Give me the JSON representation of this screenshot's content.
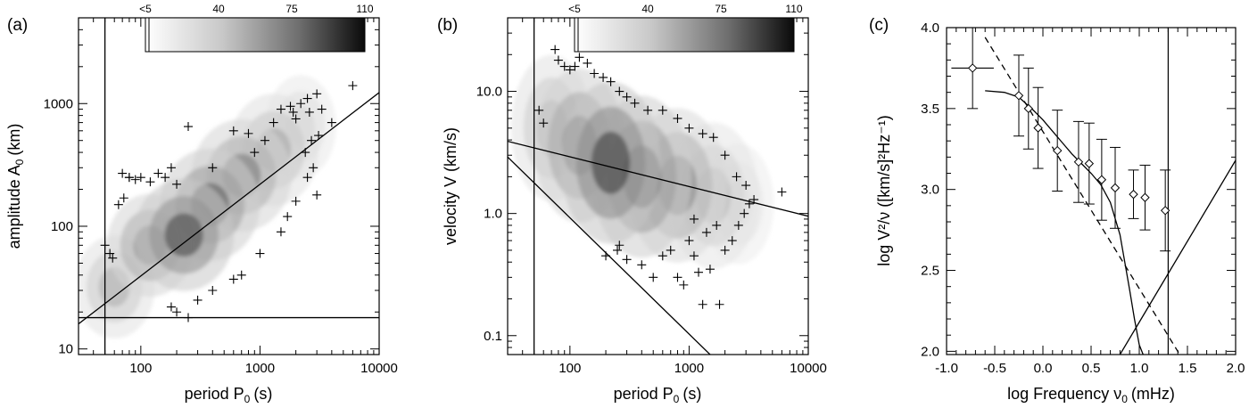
{
  "chart_data": [
    {
      "type": "scatter",
      "panel_label": "(a)",
      "xlabel": "period P",
      "xlabel_sub": "0",
      "xlabel_unit": "(s)",
      "ylabel": "amplitude A",
      "ylabel_sub": "0",
      "ylabel_unit": "(km)",
      "xscale": "log",
      "yscale": "log",
      "xlim": [
        30,
        10000
      ],
      "ylim": [
        9,
        5000
      ],
      "xticks": [
        100,
        1000,
        10000
      ],
      "xtick_labels": [
        "100",
        "1000",
        "10000"
      ],
      "yticks": [
        10,
        100,
        1000
      ],
      "ytick_labels": [
        "10",
        "100",
        "1000"
      ],
      "colorbar": {
        "tick_labels": [
          "<5",
          "40",
          "75",
          "110"
        ],
        "range": [
          0,
          110
        ]
      },
      "density_blobs": [
        {
          "cx": 60,
          "cy": 32,
          "sx": 1.35,
          "sy": 1.45,
          "level": 35
        },
        {
          "cx": 120,
          "cy": 70,
          "sx": 1.38,
          "sy": 1.45,
          "level": 60
        },
        {
          "cx": 230,
          "cy": 85,
          "sx": 1.45,
          "sy": 1.5,
          "level": 85
        },
        {
          "cx": 380,
          "cy": 150,
          "sx": 1.45,
          "sy": 1.5,
          "level": 75
        },
        {
          "cx": 700,
          "cy": 260,
          "sx": 1.45,
          "sy": 1.5,
          "level": 60
        },
        {
          "cx": 1300,
          "cy": 420,
          "sx": 1.4,
          "sy": 1.5,
          "level": 40
        },
        {
          "cx": 2200,
          "cy": 650,
          "sx": 1.3,
          "sy": 1.45,
          "level": 20
        }
      ],
      "points": [
        [
          70,
          270
        ],
        [
          80,
          250
        ],
        [
          90,
          240
        ],
        [
          100,
          250
        ],
        [
          120,
          230
        ],
        [
          140,
          270
        ],
        [
          160,
          250
        ],
        [
          180,
          300
        ],
        [
          200,
          220
        ],
        [
          250,
          650
        ],
        [
          400,
          300
        ],
        [
          600,
          600
        ],
        [
          800,
          570
        ],
        [
          900,
          400
        ],
        [
          1100,
          500
        ],
        [
          1300,
          700
        ],
        [
          1500,
          900
        ],
        [
          1800,
          950
        ],
        [
          2000,
          750
        ],
        [
          2200,
          1000
        ],
        [
          2500,
          1100
        ],
        [
          2600,
          850
        ],
        [
          3000,
          1200
        ],
        [
          3300,
          900
        ],
        [
          4000,
          700
        ],
        [
          6000,
          1400
        ],
        [
          3000,
          180
        ],
        [
          2800,
          300
        ],
        [
          2500,
          250
        ],
        [
          2000,
          160
        ],
        [
          1700,
          120
        ],
        [
          1500,
          90
        ],
        [
          1000,
          60
        ],
        [
          700,
          40
        ],
        [
          600,
          37
        ],
        [
          400,
          30
        ],
        [
          300,
          25
        ],
        [
          200,
          20
        ],
        [
          180,
          22
        ],
        [
          250,
          18
        ],
        [
          50,
          70
        ],
        [
          55,
          60
        ],
        [
          58,
          55
        ],
        [
          65,
          150
        ],
        [
          72,
          170
        ],
        [
          80,
          250
        ],
        [
          2400,
          400
        ],
        [
          2700,
          500
        ],
        [
          3100,
          550
        ],
        [
          1900,
          850
        ]
      ],
      "lines": [
        {
          "name": "fit",
          "points": [
            [
              30,
              16
            ],
            [
              10000,
              1230
            ]
          ]
        },
        {
          "name": "lower-limit",
          "points": [
            [
              30,
              18
            ],
            [
              10000,
              18
            ]
          ]
        },
        {
          "name": "period-cutoff",
          "points": [
            [
              50,
              9
            ],
            [
              50,
              5000
            ]
          ]
        }
      ]
    },
    {
      "type": "scatter",
      "panel_label": "(b)",
      "xlabel": "period P",
      "xlabel_sub": "0",
      "xlabel_unit": "(s)",
      "ylabel": "velocity V (km/s)",
      "xscale": "log",
      "yscale": "log",
      "xlim": [
        30,
        10000
      ],
      "ylim": [
        0.07,
        40
      ],
      "xticks": [
        100,
        1000,
        10000
      ],
      "xtick_labels": [
        "100",
        "1000",
        "10000"
      ],
      "yticks": [
        0.1,
        1,
        10
      ],
      "ytick_labels": [
        "0.1",
        "1.0",
        "10.0"
      ],
      "colorbar": {
        "tick_labels": [
          "<5",
          "40",
          "75",
          "110"
        ],
        "range": [
          0,
          110
        ]
      },
      "density_blobs": [
        {
          "cx": 70,
          "cy": 5,
          "sx": 1.35,
          "sy": 1.7,
          "level": 35
        },
        {
          "cx": 120,
          "cy": 3.6,
          "sx": 1.4,
          "sy": 1.75,
          "level": 65
        },
        {
          "cx": 220,
          "cy": 2.6,
          "sx": 1.45,
          "sy": 1.8,
          "level": 90
        },
        {
          "cx": 400,
          "cy": 2.0,
          "sx": 1.45,
          "sy": 1.8,
          "level": 75
        },
        {
          "cx": 800,
          "cy": 1.7,
          "sx": 1.45,
          "sy": 1.75,
          "level": 55
        },
        {
          "cx": 1600,
          "cy": 1.4,
          "sx": 1.4,
          "sy": 1.7,
          "level": 30
        },
        {
          "cx": 2600,
          "cy": 1.2,
          "sx": 1.3,
          "sy": 1.55,
          "level": 15
        }
      ],
      "points": [
        [
          75,
          22
        ],
        [
          80,
          18
        ],
        [
          90,
          16
        ],
        [
          100,
          15
        ],
        [
          110,
          16
        ],
        [
          120,
          19
        ],
        [
          140,
          17
        ],
        [
          160,
          14
        ],
        [
          190,
          13
        ],
        [
          220,
          12
        ],
        [
          260,
          10
        ],
        [
          300,
          9
        ],
        [
          350,
          8
        ],
        [
          450,
          7
        ],
        [
          600,
          7
        ],
        [
          800,
          6
        ],
        [
          1000,
          5
        ],
        [
          1300,
          4.5
        ],
        [
          1600,
          4.2
        ],
        [
          2000,
          3
        ],
        [
          2500,
          2
        ],
        [
          3000,
          1.7
        ],
        [
          3500,
          1.3
        ],
        [
          6000,
          1.5
        ],
        [
          55,
          7
        ],
        [
          60,
          5.5
        ],
        [
          600,
          0.45
        ],
        [
          700,
          0.5
        ],
        [
          800,
          0.3
        ],
        [
          900,
          0.26
        ],
        [
          1000,
          0.6
        ],
        [
          1100,
          0.45
        ],
        [
          1200,
          0.33
        ],
        [
          1300,
          0.18
        ],
        [
          1500,
          0.35
        ],
        [
          1800,
          0.18
        ],
        [
          2000,
          0.5
        ],
        [
          1700,
          0.8
        ],
        [
          1400,
          0.7
        ],
        [
          1100,
          0.9
        ],
        [
          500,
          0.3
        ],
        [
          400,
          0.38
        ],
        [
          300,
          0.42
        ],
        [
          250,
          0.5
        ],
        [
          200,
          0.45
        ],
        [
          260,
          0.55
        ],
        [
          2300,
          0.6
        ],
        [
          2600,
          0.8
        ],
        [
          2900,
          1.0
        ],
        [
          3200,
          1.2
        ]
      ],
      "lines": [
        {
          "name": "fit",
          "points": [
            [
              30,
              3.9
            ],
            [
              10000,
              0.95
            ]
          ]
        },
        {
          "name": "lower-limit",
          "points": [
            [
              30,
              2.9
            ],
            [
              1500,
              0.07
            ]
          ]
        },
        {
          "name": "period-cutoff",
          "points": [
            [
              50,
              0.07
            ],
            [
              50,
              40
            ]
          ]
        }
      ]
    },
    {
      "type": "line",
      "panel_label": "(c)",
      "xlabel": "log Frequency ν",
      "xlabel_sub": "0",
      "xlabel_unit": "(mHz)",
      "ylabel": "log V²/ν  ([km/s]²Hz⁻¹)",
      "xlim": [
        -1.0,
        2.0
      ],
      "ylim": [
        1.98,
        4.0
      ],
      "xticks": [
        -1.0,
        -0.5,
        0.0,
        0.5,
        1.0,
        1.5,
        2.0
      ],
      "xtick_labels": [
        "-1.0",
        "-0.5",
        "0.0",
        "0.5",
        "1.0",
        "1.5",
        "2.0"
      ],
      "yticks": [
        2.0,
        2.5,
        3.0,
        3.5,
        4.0
      ],
      "ytick_labels": [
        "2.0",
        "2.5",
        "3.0",
        "3.5",
        "4.0"
      ],
      "series": [
        {
          "name": "measured",
          "marker": "diamond",
          "x": [
            -0.73,
            -0.25,
            -0.15,
            -0.05,
            0.15,
            0.37,
            0.48,
            0.61,
            0.75,
            0.94,
            1.06,
            1.27
          ],
          "y": [
            3.75,
            3.58,
            3.5,
            3.38,
            3.24,
            3.17,
            3.16,
            3.06,
            3.01,
            2.97,
            2.95,
            2.87
          ],
          "yerr": [
            0.25,
            0.25,
            0.25,
            0.25,
            0.25,
            0.25,
            0.25,
            0.25,
            0.25,
            0.15,
            0.2,
            0.25
          ],
          "xerr": [
            0.22,
            0,
            0,
            0,
            0,
            0,
            0,
            0,
            0,
            0,
            0,
            0
          ]
        },
        {
          "name": "model",
          "style": "solid",
          "x": [
            -0.6,
            -0.4,
            -0.25,
            -0.1,
            0.0,
            0.1,
            0.2,
            0.3,
            0.4,
            0.5,
            0.6,
            0.7,
            0.8,
            0.85,
            0.9,
            0.95,
            1.0,
            1.04
          ],
          "y": [
            3.61,
            3.6,
            3.57,
            3.49,
            3.43,
            3.36,
            3.29,
            3.22,
            3.16,
            3.1,
            3.03,
            2.92,
            2.72,
            2.55,
            2.38,
            2.2,
            2.04,
            1.98
          ]
        },
        {
          "name": "power-law",
          "style": "dashed",
          "x": [
            -0.6,
            1.42
          ],
          "y": [
            3.94,
            1.98
          ]
        },
        {
          "name": "rising",
          "style": "solid",
          "x": [
            0.8,
            2.0
          ],
          "y": [
            1.98,
            3.18
          ]
        }
      ],
      "vlines": [
        1.3
      ]
    }
  ]
}
